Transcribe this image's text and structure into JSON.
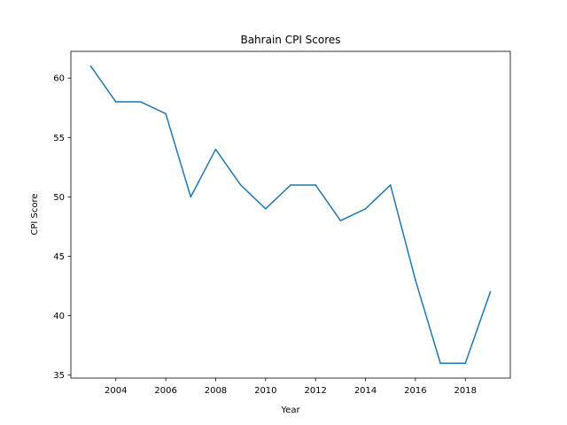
{
  "chart_data": {
    "type": "line",
    "title": "Bahrain CPI Scores",
    "xlabel": "Year",
    "ylabel": "CPI Score",
    "x": [
      2003,
      2004,
      2005,
      2006,
      2007,
      2008,
      2009,
      2010,
      2011,
      2012,
      2013,
      2014,
      2015,
      2016,
      2017,
      2018,
      2019
    ],
    "series": [
      {
        "values": [
          61,
          58,
          58,
          57,
          50,
          54,
          51,
          49,
          51,
          51,
          48,
          49,
          51,
          43,
          36,
          36,
          42
        ],
        "color": "#1f77b4"
      }
    ],
    "xlim": [
      2002.2,
      2019.8
    ],
    "ylim": [
      34.75,
      62.25
    ],
    "xticks": [
      2004,
      2006,
      2008,
      2010,
      2012,
      2014,
      2016,
      2018
    ],
    "yticks": [
      35,
      40,
      45,
      50,
      55,
      60
    ],
    "grid": false,
    "legend": "none"
  }
}
